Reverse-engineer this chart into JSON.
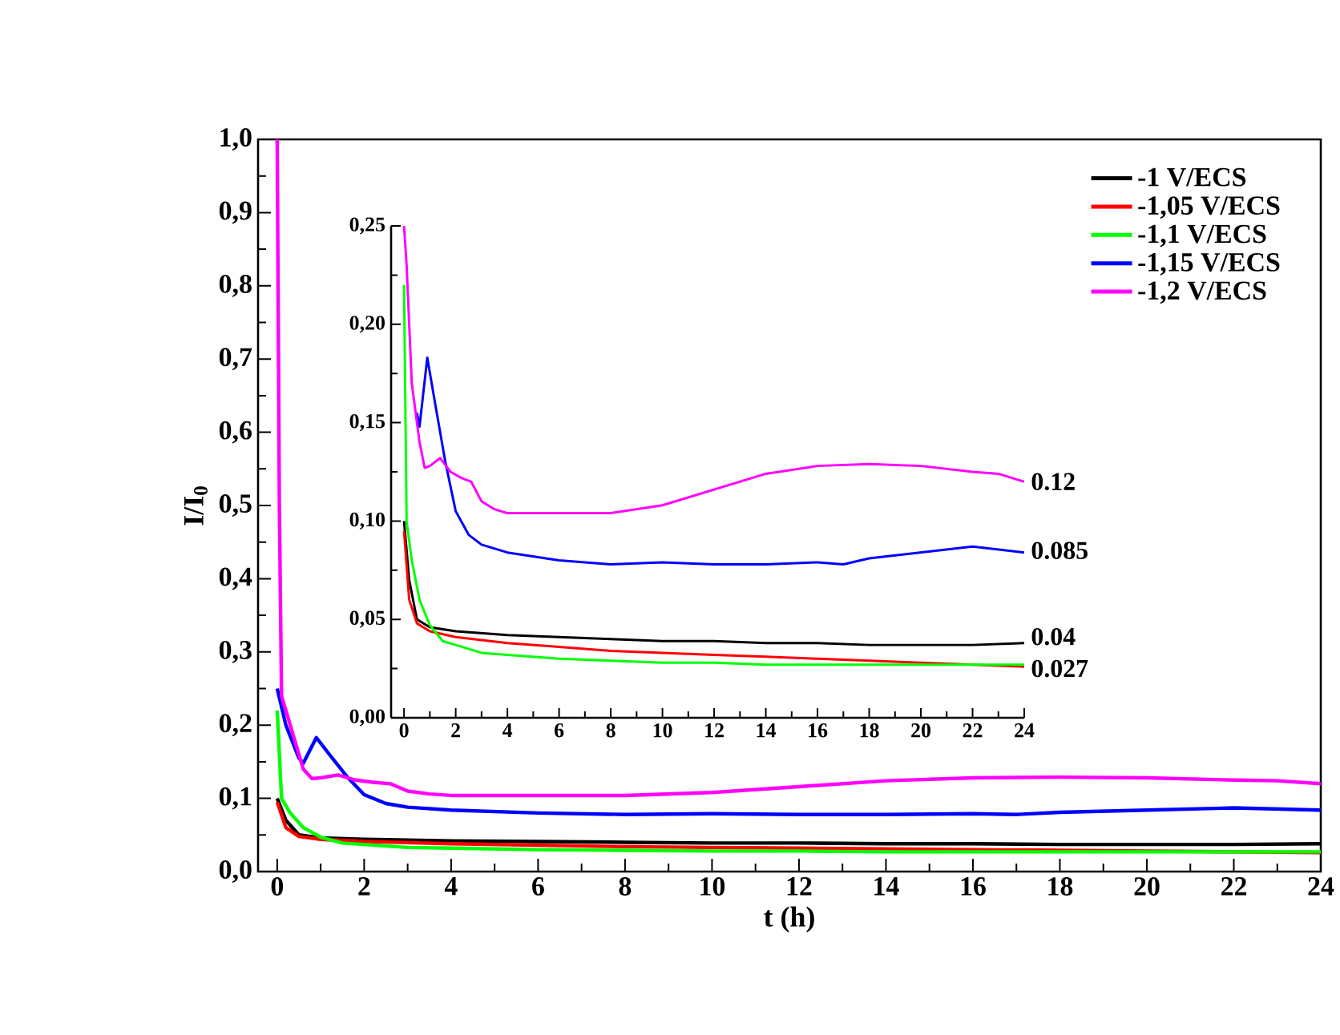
{
  "chart_data": [
    {
      "type": "line",
      "xlabel": "t (h)",
      "ylabel": "I/I$_{0}$",
      "xlim": [
        -0.44,
        24
      ],
      "ylim": [
        0,
        1
      ],
      "xticks": [
        0,
        2,
        4,
        6,
        8,
        10,
        12,
        14,
        16,
        18,
        20,
        22,
        24
      ],
      "yticks": [
        {
          "value": 0,
          "label": "0,0"
        },
        {
          "value": 0.1,
          "label": "0,1"
        },
        {
          "value": 0.2,
          "label": "0,2"
        },
        {
          "value": 0.3,
          "label": "0,3"
        },
        {
          "value": 0.4,
          "label": "0,4"
        },
        {
          "value": 0.5,
          "label": "0,5"
        },
        {
          "value": 0.6,
          "label": "0,6"
        },
        {
          "value": 0.7,
          "label": "0,7"
        },
        {
          "value": 0.8,
          "label": "0,8"
        },
        {
          "value": 0.9,
          "label": "0,9"
        },
        {
          "value": 1.0,
          "label": "1,0"
        }
      ],
      "legend": "top right",
      "grid": false,
      "marker": "none",
      "line_style": "solid",
      "series": [
        {
          "name": "-1 V/ECS",
          "color": "#000000",
          "x": [
            0,
            0.2,
            0.5,
            1,
            2,
            4,
            6,
            8,
            10,
            12,
            14,
            16,
            18,
            20,
            22,
            24
          ],
          "values": [
            0.1,
            0.07,
            0.05,
            0.046,
            0.044,
            0.042,
            0.041,
            0.04,
            0.039,
            0.039,
            0.038,
            0.038,
            0.037,
            0.037,
            0.037,
            0.038
          ]
        },
        {
          "name": "-1,05 V/ECS",
          "color": "#ff0000",
          "x": [
            0,
            0.2,
            0.5,
            1,
            2,
            4,
            6,
            8,
            10,
            12,
            14,
            16,
            18,
            20,
            22,
            24
          ],
          "values": [
            0.095,
            0.06,
            0.048,
            0.044,
            0.041,
            0.038,
            0.036,
            0.034,
            0.033,
            0.032,
            0.031,
            0.03,
            0.029,
            0.028,
            0.027,
            0.026
          ]
        },
        {
          "name": "-1,1 V/ECS",
          "color": "#00ff00",
          "x": [
            0,
            0.1,
            0.3,
            0.6,
            1,
            1.5,
            2,
            3,
            4,
            6,
            8,
            10,
            12,
            14,
            16,
            18,
            20,
            22,
            24
          ],
          "values": [
            0.22,
            0.1,
            0.08,
            0.06,
            0.047,
            0.039,
            0.037,
            0.033,
            0.032,
            0.03,
            0.029,
            0.028,
            0.028,
            0.027,
            0.027,
            0.027,
            0.027,
            0.027,
            0.027
          ]
        },
        {
          "name": "-1,15 V/ECS",
          "color": "#0000ff",
          "x": [
            0,
            0.2,
            0.5,
            0.6,
            0.9,
            1.2,
            1.6,
            2,
            2.5,
            3,
            4,
            6,
            8,
            10,
            12,
            14,
            16,
            17,
            18,
            20,
            22,
            24
          ],
          "values": [
            0.25,
            0.2,
            0.155,
            0.148,
            0.183,
            0.16,
            0.13,
            0.105,
            0.093,
            0.088,
            0.084,
            0.08,
            0.078,
            0.079,
            0.078,
            0.078,
            0.079,
            0.078,
            0.081,
            0.084,
            0.087,
            0.084
          ]
        },
        {
          "name": "-1,2 V/ECS",
          "color": "#ff00ff",
          "x": [
            0,
            0.05,
            0.1,
            0.3,
            0.6,
            0.8,
            1,
            1.4,
            1.8,
            2.2,
            2.6,
            3,
            3.5,
            4,
            6,
            8,
            10,
            12,
            14,
            16,
            18,
            20,
            22,
            23,
            24
          ],
          "values": [
            1.0,
            0.5,
            0.24,
            0.2,
            0.14,
            0.127,
            0.128,
            0.132,
            0.125,
            0.122,
            0.12,
            0.11,
            0.106,
            0.104,
            0.104,
            0.104,
            0.108,
            0.116,
            0.124,
            0.128,
            0.129,
            0.128,
            0.125,
            0.124,
            0.12
          ]
        }
      ]
    },
    {
      "type": "line",
      "xlim": [
        -0.5,
        24
      ],
      "ylim": [
        0,
        0.25
      ],
      "xticks": [
        0,
        2,
        4,
        6,
        8,
        10,
        12,
        14,
        16,
        18,
        20,
        22,
        24
      ],
      "yticks": [
        {
          "value": 0,
          "label": "0,00"
        },
        {
          "value": 0.05,
          "label": "0,05"
        },
        {
          "value": 0.1,
          "label": "0,10"
        },
        {
          "value": 0.15,
          "label": "0,15"
        },
        {
          "value": 0.2,
          "label": "0,20"
        },
        {
          "value": 0.25,
          "label": "0,25"
        }
      ],
      "grid": false,
      "marker": "none",
      "line_style": "solid",
      "annotations": [
        "0.12",
        "0.085",
        "0.04",
        "0.027"
      ],
      "series": [
        {
          "color": "#000000",
          "x": [
            0,
            0.2,
            0.5,
            1,
            2,
            4,
            6,
            8,
            10,
            12,
            14,
            16,
            18,
            20,
            22,
            24
          ],
          "values": [
            0.1,
            0.07,
            0.05,
            0.046,
            0.044,
            0.042,
            0.041,
            0.04,
            0.039,
            0.039,
            0.038,
            0.038,
            0.037,
            0.037,
            0.037,
            0.038
          ]
        },
        {
          "color": "#ff0000",
          "x": [
            0,
            0.2,
            0.5,
            1,
            2,
            4,
            6,
            8,
            10,
            12,
            14,
            16,
            18,
            20,
            22,
            24
          ],
          "values": [
            0.095,
            0.06,
            0.048,
            0.044,
            0.041,
            0.038,
            0.036,
            0.034,
            0.033,
            0.032,
            0.031,
            0.03,
            0.029,
            0.028,
            0.027,
            0.026
          ]
        },
        {
          "color": "#00ff00",
          "x": [
            0,
            0.1,
            0.3,
            0.6,
            1,
            1.5,
            2,
            3,
            4,
            6,
            8,
            10,
            12,
            14,
            16,
            18,
            20,
            22,
            24
          ],
          "values": [
            0.22,
            0.1,
            0.08,
            0.06,
            0.047,
            0.039,
            0.037,
            0.033,
            0.032,
            0.03,
            0.029,
            0.028,
            0.028,
            0.027,
            0.027,
            0.027,
            0.027,
            0.027,
            0.027
          ]
        },
        {
          "color": "#0000ff",
          "x": [
            0.5,
            0.6,
            0.9,
            1.2,
            1.6,
            2,
            2.5,
            3,
            4,
            6,
            8,
            10,
            12,
            14,
            16,
            17,
            18,
            20,
            22,
            24
          ],
          "values": [
            0.155,
            0.148,
            0.183,
            0.16,
            0.13,
            0.105,
            0.093,
            0.088,
            0.084,
            0.08,
            0.078,
            0.079,
            0.078,
            0.078,
            0.079,
            0.078,
            0.081,
            0.084,
            0.087,
            0.084
          ]
        },
        {
          "color": "#ff00ff",
          "x": [
            0,
            0.1,
            0.3,
            0.6,
            0.8,
            1,
            1.4,
            1.8,
            2.2,
            2.6,
            3,
            3.5,
            4,
            6,
            8,
            10,
            12,
            14,
            16,
            18,
            20,
            22,
            23,
            24
          ],
          "values": [
            0.25,
            0.23,
            0.17,
            0.14,
            0.127,
            0.128,
            0.132,
            0.125,
            0.122,
            0.12,
            0.11,
            0.106,
            0.104,
            0.104,
            0.104,
            0.108,
            0.116,
            0.124,
            0.128,
            0.129,
            0.128,
            0.125,
            0.124,
            0.12
          ]
        }
      ]
    }
  ]
}
